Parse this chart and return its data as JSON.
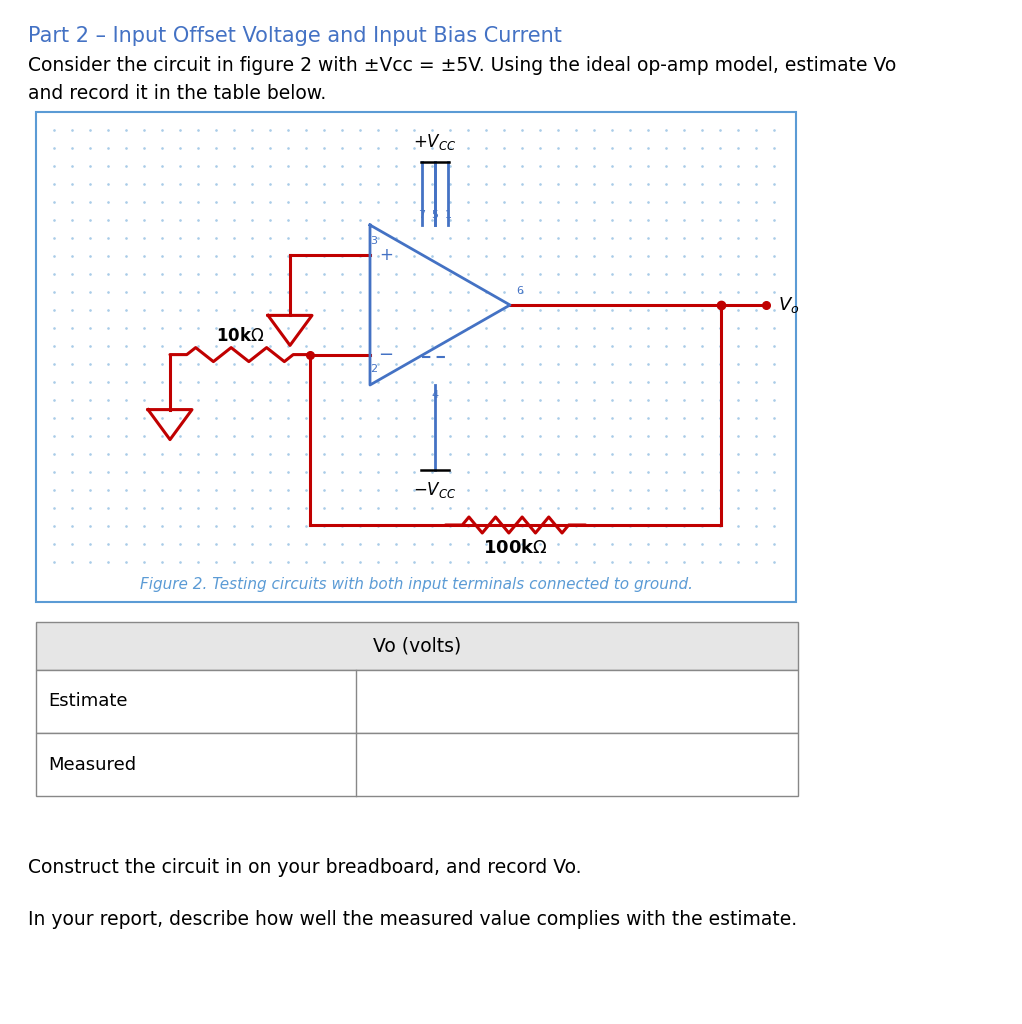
{
  "title": "Part 2 – Input Offset Voltage and Input Bias Current",
  "title_color": "#4472C4",
  "body_text1": "Consider the circuit in figure 2 with ±Vcc = ±5V. Using the ideal op-amp model, estimate Vo",
  "body_text2": "and record it in the table below.",
  "figure_caption": "Figure 2. Testing circuits with both input terminals connected to ground.",
  "table_header": "Vo (volts)",
  "table_rows": [
    "Estimate",
    "Measured"
  ],
  "footer_text1": "Construct the circuit in on your breadboard, and record Vo.",
  "footer_text2": "In your report, describe how well the measured value complies with the estimate.",
  "circuit_box_color": "#5B9BD5",
  "red_color": "#C00000",
  "blue_color": "#4472C4",
  "bg_color": "#FFFFFF",
  "table_header_bg": "#E8E8E8",
  "table_border": "#909090"
}
